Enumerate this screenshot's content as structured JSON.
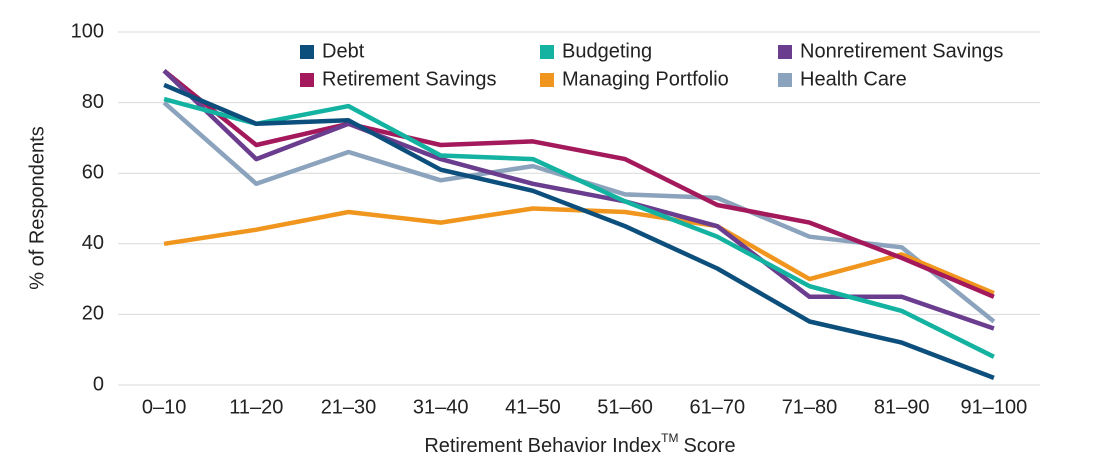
{
  "chart_data": {
    "type": "line",
    "y_label": "% of Respondents",
    "x_label_parts": [
      "Retirement Behavior Index",
      "TM",
      "Score"
    ],
    "categories": [
      "0–10",
      "11–20",
      "21–30",
      "31–40",
      "41–50",
      "51–60",
      "61–70",
      "71–80",
      "81–90",
      "91–100"
    ],
    "series": [
      {
        "name": "Debt",
        "color": "#0d4f7c",
        "values": [
          85,
          74,
          75,
          61,
          55,
          45,
          33,
          18,
          12,
          2
        ]
      },
      {
        "name": "Budgeting",
        "color": "#14b2a0",
        "values": [
          81,
          74,
          79,
          65,
          64,
          52,
          42,
          28,
          21,
          8
        ]
      },
      {
        "name": "Nonretirement Savings",
        "color": "#6a3d8f",
        "values": [
          89,
          64,
          74,
          64,
          57,
          52,
          45,
          25,
          25,
          16
        ]
      },
      {
        "name": "Retirement Savings",
        "color": "#a3195b",
        "values": [
          89,
          68,
          74,
          68,
          69,
          64,
          51,
          46,
          36,
          25
        ]
      },
      {
        "name": "Managing Portfolio",
        "color": "#f0961e",
        "values": [
          40,
          44,
          49,
          46,
          50,
          49,
          45,
          30,
          37,
          26
        ]
      },
      {
        "name": "Health Care",
        "color": "#8ba3bd",
        "values": [
          80,
          57,
          66,
          58,
          62,
          54,
          53,
          42,
          39,
          18
        ]
      }
    ],
    "ylim": [
      0,
      100
    ],
    "yticks": [
      0,
      20,
      40,
      60,
      80,
      100
    ],
    "grid": true,
    "legend": "top"
  }
}
